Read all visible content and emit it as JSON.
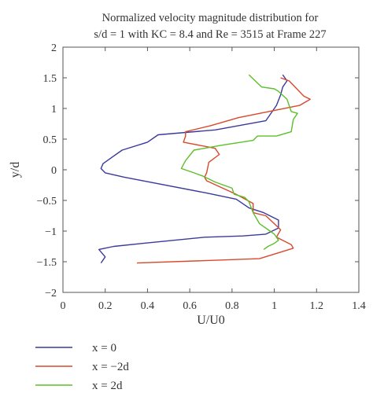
{
  "chart_data": {
    "type": "line",
    "title_line1": "Normalized velocity magnitude distribution for",
    "title_line2": "s/d = 1 with KC = 8.4 and Re = 3515 at Frame 227",
    "xlabel": "U/U0",
    "ylabel": "y/d",
    "xlim": [
      0,
      1.4
    ],
    "ylim": [
      -2,
      2
    ],
    "xticks": [
      0,
      0.2,
      0.4,
      0.6,
      0.8,
      1,
      1.2,
      1.4
    ],
    "xtick_labels": [
      "0",
      "0.2",
      "0.4",
      "0.6",
      "0.8",
      "1",
      "1.2",
      "1.4"
    ],
    "yticks": [
      2,
      1.5,
      1,
      0.5,
      0,
      -0.5,
      -1,
      -1.5,
      -2
    ],
    "ytick_labels": [
      "2",
      "1.5",
      "1",
      "0.5",
      "0",
      "−0.5",
      "−1",
      "−1.5",
      "−2"
    ],
    "grid": false,
    "legend_position": "bottom-left, below plot",
    "series": [
      {
        "name": "x = 0",
        "color": "#3a3a9c",
        "points": [
          [
            1.04,
            1.55
          ],
          [
            1.06,
            1.45
          ],
          [
            1.04,
            1.35
          ],
          [
            1.03,
            1.22
          ],
          [
            1.01,
            1.05
          ],
          [
            0.96,
            0.8
          ],
          [
            0.72,
            0.65
          ],
          [
            0.45,
            0.57
          ],
          [
            0.4,
            0.45
          ],
          [
            0.28,
            0.32
          ],
          [
            0.23,
            0.2
          ],
          [
            0.19,
            0.1
          ],
          [
            0.18,
            0.02
          ],
          [
            0.2,
            -0.05
          ],
          [
            0.29,
            -0.12
          ],
          [
            0.68,
            -0.38
          ],
          [
            0.82,
            -0.48
          ],
          [
            0.88,
            -0.62
          ],
          [
            0.95,
            -0.7
          ],
          [
            1.02,
            -0.82
          ],
          [
            1.02,
            -0.95
          ],
          [
            0.96,
            -1.05
          ],
          [
            0.85,
            -1.08
          ],
          [
            0.67,
            -1.1
          ],
          [
            0.38,
            -1.2
          ],
          [
            0.24,
            -1.25
          ],
          [
            0.17,
            -1.3
          ],
          [
            0.2,
            -1.42
          ],
          [
            0.18,
            -1.52
          ]
        ]
      },
      {
        "name": "x = −2d",
        "color": "#d9482b",
        "points": [
          [
            1.03,
            1.5
          ],
          [
            1.07,
            1.45
          ],
          [
            1.14,
            1.2
          ],
          [
            1.17,
            1.15
          ],
          [
            1.12,
            1.05
          ],
          [
            0.83,
            0.85
          ],
          [
            0.7,
            0.72
          ],
          [
            0.58,
            0.62
          ],
          [
            0.58,
            0.55
          ],
          [
            0.57,
            0.45
          ],
          [
            0.72,
            0.35
          ],
          [
            0.74,
            0.25
          ],
          [
            0.69,
            0.12
          ],
          [
            0.68,
            -0.05
          ],
          [
            0.67,
            -0.12
          ],
          [
            0.68,
            -0.18
          ],
          [
            0.82,
            -0.4
          ],
          [
            0.9,
            -0.55
          ],
          [
            0.9,
            -0.7
          ],
          [
            0.96,
            -0.75
          ],
          [
            1.0,
            -0.88
          ],
          [
            1.03,
            -0.98
          ],
          [
            1.01,
            -1.1
          ],
          [
            1.08,
            -1.22
          ],
          [
            1.09,
            -1.28
          ],
          [
            0.93,
            -1.45
          ],
          [
            0.35,
            -1.52
          ]
        ]
      },
      {
        "name": "x = 2d",
        "color": "#5cbf2a",
        "points": [
          [
            0.88,
            1.55
          ],
          [
            0.94,
            1.35
          ],
          [
            1.0,
            1.32
          ],
          [
            1.02,
            1.28
          ],
          [
            1.06,
            1.15
          ],
          [
            1.08,
            0.95
          ],
          [
            1.11,
            0.92
          ],
          [
            1.09,
            0.82
          ],
          [
            1.08,
            0.62
          ],
          [
            1.01,
            0.55
          ],
          [
            0.92,
            0.55
          ],
          [
            0.9,
            0.48
          ],
          [
            0.75,
            0.4
          ],
          [
            0.62,
            0.32
          ],
          [
            0.58,
            0.15
          ],
          [
            0.56,
            0.02
          ],
          [
            0.62,
            -0.05
          ],
          [
            0.66,
            -0.1
          ],
          [
            0.72,
            -0.2
          ],
          [
            0.8,
            -0.3
          ],
          [
            0.81,
            -0.4
          ],
          [
            0.86,
            -0.45
          ],
          [
            0.88,
            -0.52
          ],
          [
            0.9,
            -0.7
          ],
          [
            0.93,
            -0.88
          ],
          [
            0.98,
            -1.0
          ],
          [
            1.0,
            -1.05
          ],
          [
            1.02,
            -1.15
          ],
          [
            1.0,
            -1.2
          ],
          [
            0.97,
            -1.25
          ],
          [
            0.95,
            -1.3
          ]
        ]
      }
    ]
  },
  "legend": {
    "items": [
      {
        "label": "x = 0",
        "color": "#3a3a9c"
      },
      {
        "label": "x = −2d",
        "color": "#d9482b"
      },
      {
        "label": "x = 2d",
        "color": "#5cbf2a"
      }
    ]
  }
}
